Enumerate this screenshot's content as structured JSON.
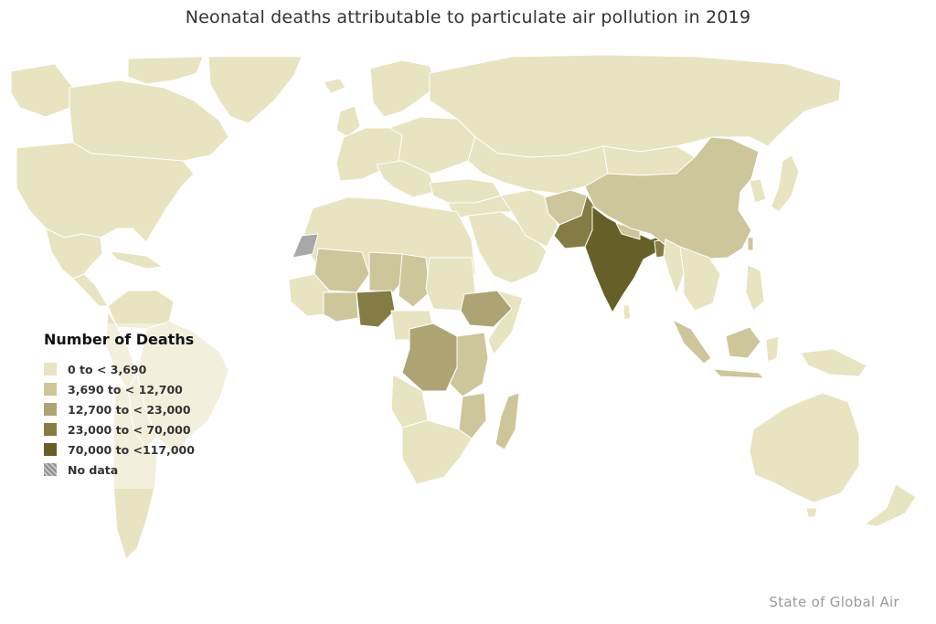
{
  "title": "Neonatal deaths attributable to particulate air pollution in 2019",
  "legend": {
    "title": "Number of Deaths",
    "items": [
      {
        "label": "0 to < 3,690",
        "color": "#e8e3c0"
      },
      {
        "label": "3,690 to < 12,700",
        "color": "#cdc69a"
      },
      {
        "label": "12,700 to < 23,000",
        "color": "#aea473"
      },
      {
        "label": "23,000 to < 70,000",
        "color": "#857c45"
      },
      {
        "label": "70,000 to <117,000",
        "color": "#665f28"
      },
      {
        "label": "No data",
        "color": "#a8a8a8"
      }
    ]
  },
  "credit": "State of Global Air",
  "colors": {
    "background": "#ffffff",
    "country_border": "#ffffff",
    "bin_0": "#e8e3c0",
    "bin_1": "#cdc69a",
    "bin_2": "#aea473",
    "bin_3": "#857c45",
    "bin_4": "#665f28",
    "no_data": "#a8a8a8"
  }
}
